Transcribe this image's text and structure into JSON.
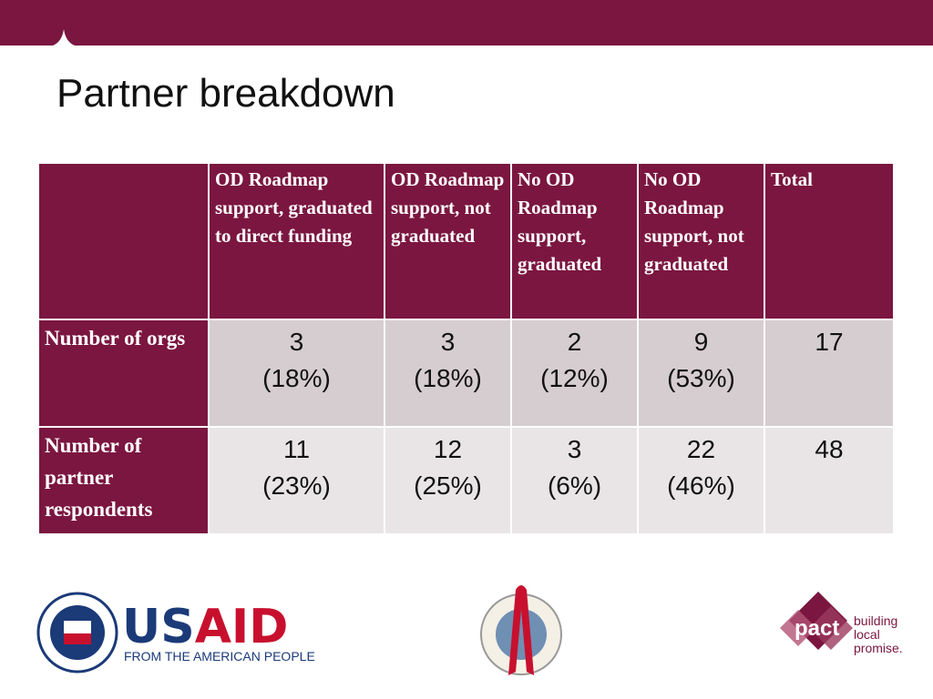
{
  "title": "Partner breakdown",
  "table": {
    "header": [
      "",
      "OD Roadmap support, graduated to direct funding",
      "OD Roadmap support, not graduated",
      "No OD Roadmap support, graduated",
      "No OD Roadmap support, not graduated",
      "Total"
    ],
    "rows": [
      {
        "label": "Number of orgs",
        "cells": [
          [
            "3",
            "(18%)"
          ],
          [
            "3",
            "(18%)"
          ],
          [
            "2",
            "(12%)"
          ],
          [
            "9",
            "(53%)"
          ],
          [
            "17"
          ]
        ]
      },
      {
        "label": "Number of partner respondents",
        "cells": [
          [
            "11",
            "(23%)"
          ],
          [
            "12",
            "(25%)"
          ],
          [
            "3",
            "(6%)"
          ],
          [
            "22",
            "(46%)"
          ],
          [
            "48"
          ]
        ]
      }
    ]
  },
  "logos": {
    "usaid": {
      "name_parts": [
        "US",
        "AID"
      ],
      "tagline": "FROM THE AMERICAN PEOPLE"
    },
    "pact": {
      "name": "pact",
      "tagline": [
        "building",
        "local",
        "promise."
      ]
    }
  }
}
